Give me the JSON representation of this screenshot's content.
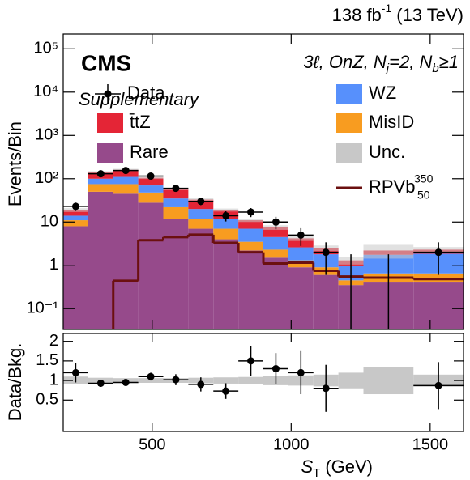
{
  "chart_data": {
    "type": "histogram",
    "lumi_label": "138 fb",
    "lumi_sup": "-1",
    "energy_label": "(13 TeV)",
    "experiment": "CMS",
    "status": "Supplementary",
    "region_label": [
      "3ℓ, OnZ, N",
      "j",
      "=2, N",
      "b",
      "≥1"
    ],
    "xlabel": "S",
    "xlabel_sub": "T",
    "xlabel_unit": "(GeV)",
    "ylabel": "Events/Bin",
    "bins": [
      180,
      270,
      360,
      450,
      540,
      630,
      720,
      810,
      900,
      990,
      1080,
      1170,
      1260,
      1440,
      1620
    ],
    "xlim": [
      180,
      1620
    ],
    "xticks": [
      500,
      1000,
      1500
    ],
    "ylim": [
      0.033,
      220000
    ],
    "log_y": true,
    "yticks": [
      {
        "value": 0.1,
        "label": "10⁻¹"
      },
      1,
      10,
      {
        "value": 100,
        "label": "10²"
      },
      {
        "value": 1000,
        "label": "10³"
      },
      {
        "value": 10000,
        "label": "10⁴"
      },
      {
        "value": 100000,
        "label": "10⁵"
      }
    ],
    "series": [
      {
        "name": "Rare",
        "color": "#964a8b",
        "values": [
          8,
          50,
          45,
          28,
          12,
          7,
          4,
          2.2,
          1.5,
          0.9,
          0.6,
          0.35,
          0.4,
          0.4
        ]
      },
      {
        "name": "MisID",
        "color": "#f89c20",
        "values": [
          3,
          25,
          30,
          20,
          10,
          5,
          3,
          1.3,
          0.8,
          0.4,
          0.3,
          0.1,
          0.25,
          0.25
        ]
      },
      {
        "name": "WZ",
        "color": "#5790fc",
        "values": [
          3,
          25,
          35,
          22,
          13,
          8,
          5,
          3.5,
          2.2,
          1.3,
          0.9,
          0.5,
          1.1,
          1.2
        ]
      },
      {
        "name": "t̄tZ",
        "color": "#e42536",
        "values": [
          5,
          40,
          50,
          35,
          23,
          13,
          7,
          4,
          3,
          1.6,
          0.7,
          0.35,
          0.45,
          0.45
        ]
      }
    ],
    "uncertainty": {
      "name": "Unc.",
      "color": "#c8c8c8",
      "values": [
        0.1,
        0.07,
        0.06,
        0.06,
        0.06,
        0.07,
        0.08,
        0.09,
        0.12,
        0.13,
        0.15,
        0.2,
        0.35,
        0.15
      ]
    },
    "signal": {
      "name": "RPVb",
      "name_sup": "350",
      "name_sub": "50",
      "color": "#6b1010",
      "values": [
        0.01,
        0.01,
        0.44,
        3.8,
        4.5,
        5.1,
        3.3,
        2,
        1.1,
        1.15,
        0.75,
        0.55,
        0.52,
        0.48
      ]
    },
    "data": {
      "name": "Data",
      "color": "#000000",
      "values": [
        23,
        130,
        155,
        115,
        60,
        30,
        14,
        17,
        10,
        5,
        2,
        0,
        0,
        2
      ],
      "errors": [
        5,
        11,
        12,
        11,
        8,
        5.5,
        3.7,
        4,
        3.2,
        2.2,
        1.4,
        1.8,
        1.8,
        1.4
      ]
    },
    "ratio": {
      "ylabel": "Data/Bkg.",
      "ylim": [
        -0.3,
        2.2
      ],
      "yticks": [
        0.5,
        1,
        1.5,
        2
      ],
      "values": [
        1.2,
        0.93,
        0.95,
        1.1,
        1.02,
        0.9,
        0.73,
        1.5,
        1.3,
        1.2,
        0.8,
        null,
        null,
        0.87
      ],
      "errors": [
        0.25,
        0.09,
        0.08,
        0.1,
        0.14,
        0.18,
        0.2,
        0.38,
        0.4,
        0.55,
        0.6,
        null,
        null,
        0.6
      ]
    }
  }
}
